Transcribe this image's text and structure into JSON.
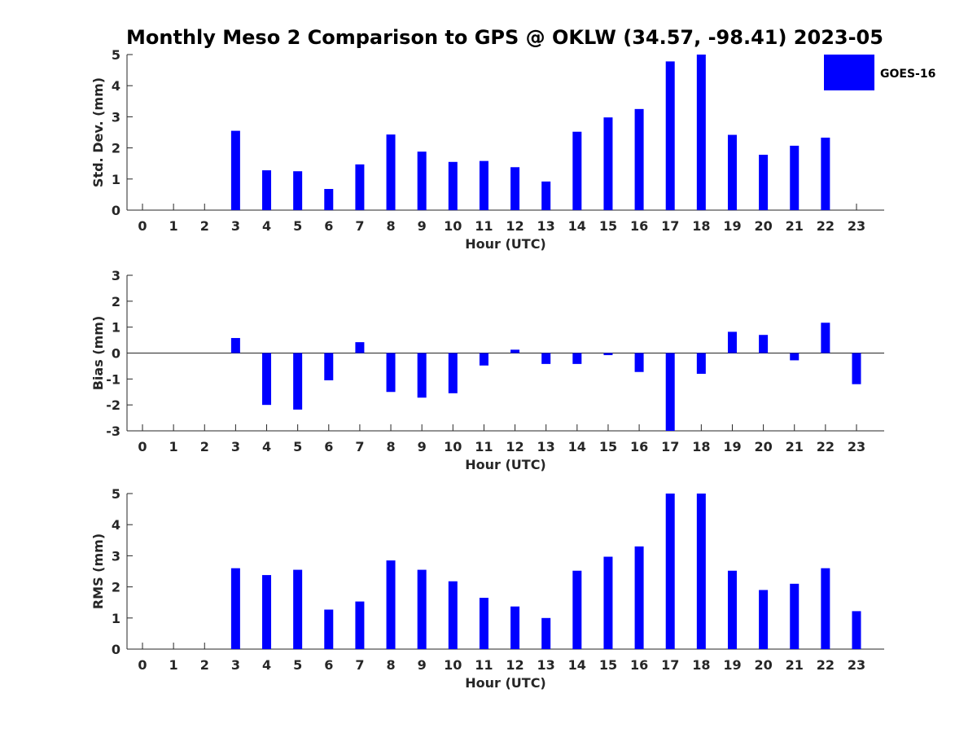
{
  "title": "Monthly Meso 2 Comparison to GPS @ OKLW (34.57, -98.41) 2023-05",
  "colors": {
    "bar": "#0000ff",
    "axis": "#262626"
  },
  "legend": {
    "label": "GOES-16",
    "placement": "top-right"
  },
  "chart_data": [
    {
      "type": "bar",
      "name": "std-dev",
      "xlabel": "Hour (UTC)",
      "ylabel": "Std. Dev. (mm)",
      "ylim": [
        0,
        5
      ],
      "yticks": [
        0,
        1,
        2,
        3,
        4,
        5
      ],
      "categories": [
        "0",
        "1",
        "2",
        "3",
        "4",
        "5",
        "6",
        "7",
        "8",
        "9",
        "10",
        "11",
        "12",
        "13",
        "14",
        "15",
        "16",
        "17",
        "18",
        "19",
        "20",
        "21",
        "22",
        "23"
      ],
      "series": [
        {
          "name": "GOES-16",
          "values": [
            null,
            null,
            null,
            2.55,
            1.28,
            1.25,
            0.68,
            1.47,
            2.43,
            1.88,
            1.55,
            1.58,
            1.38,
            0.92,
            2.52,
            2.98,
            3.25,
            4.78,
            5.0,
            2.42,
            1.78,
            2.07,
            2.33,
            null
          ]
        }
      ]
    },
    {
      "type": "bar",
      "name": "bias",
      "xlabel": "Hour (UTC)",
      "ylabel": "Bias (mm)",
      "ylim": [
        -3,
        3
      ],
      "yticks": [
        -3,
        -2,
        -1,
        0,
        1,
        2,
        3
      ],
      "categories": [
        "0",
        "1",
        "2",
        "3",
        "4",
        "5",
        "6",
        "7",
        "8",
        "9",
        "10",
        "11",
        "12",
        "13",
        "14",
        "15",
        "16",
        "17",
        "18",
        "19",
        "20",
        "21",
        "22",
        "23"
      ],
      "series": [
        {
          "name": "GOES-16",
          "values": [
            null,
            null,
            null,
            0.58,
            -2.0,
            -2.18,
            -1.05,
            0.42,
            -1.5,
            -1.72,
            -1.55,
            -0.48,
            0.13,
            -0.42,
            -0.42,
            -0.08,
            -0.73,
            -3.0,
            -0.8,
            0.82,
            0.7,
            -0.28,
            1.17,
            -1.2
          ]
        }
      ]
    },
    {
      "type": "bar",
      "name": "rms",
      "xlabel": "Hour (UTC)",
      "ylabel": "RMS (mm)",
      "ylim": [
        0,
        5
      ],
      "yticks": [
        0,
        1,
        2,
        3,
        4,
        5
      ],
      "categories": [
        "0",
        "1",
        "2",
        "3",
        "4",
        "5",
        "6",
        "7",
        "8",
        "9",
        "10",
        "11",
        "12",
        "13",
        "14",
        "15",
        "16",
        "17",
        "18",
        "19",
        "20",
        "21",
        "22",
        "23"
      ],
      "series": [
        {
          "name": "GOES-16",
          "values": [
            null,
            null,
            null,
            2.6,
            2.38,
            2.55,
            1.27,
            1.53,
            2.85,
            2.55,
            2.18,
            1.65,
            1.37,
            1.0,
            2.52,
            2.97,
            3.3,
            5.0,
            5.0,
            2.52,
            1.9,
            2.1,
            2.6,
            1.22
          ]
        }
      ]
    }
  ]
}
